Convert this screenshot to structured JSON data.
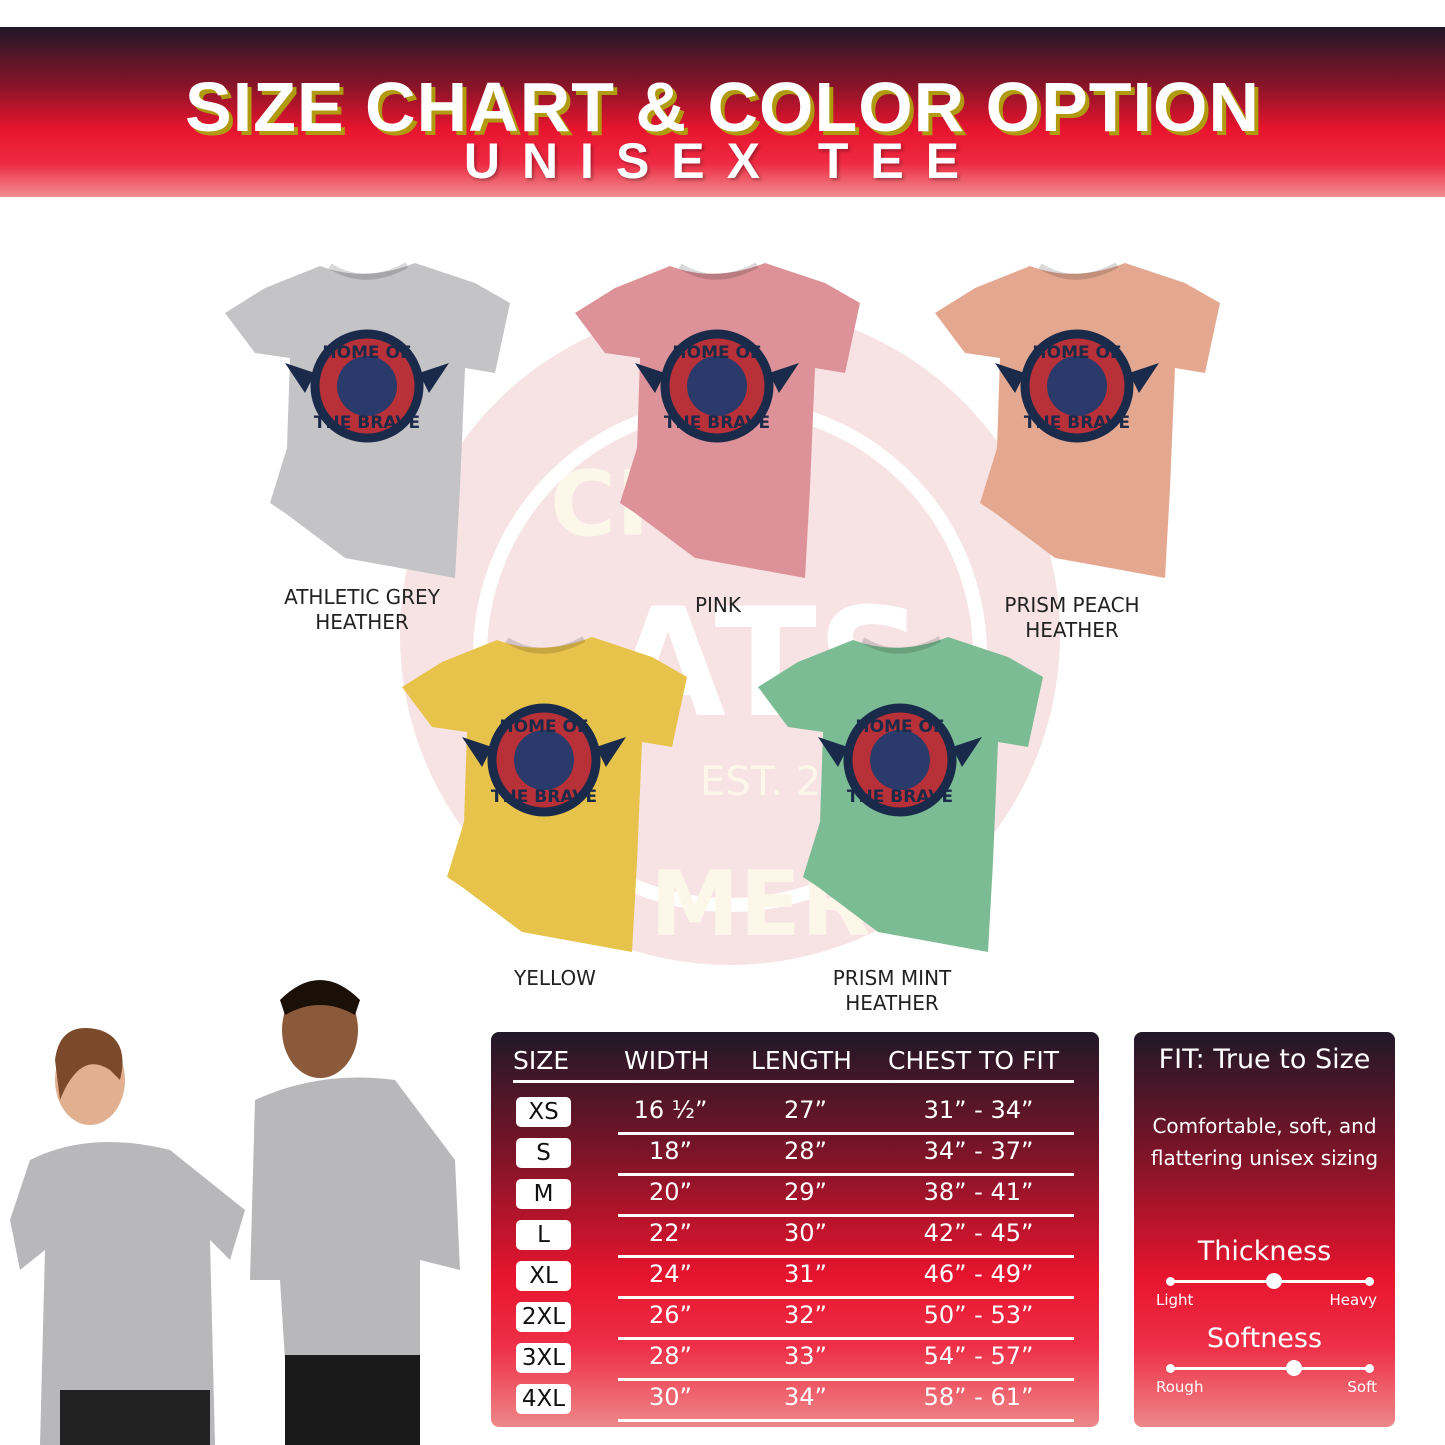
{
  "header": {
    "title": "SIZE CHART & COLOR OPTION",
    "subtitle": "UNISEX TEE"
  },
  "watermark": {
    "lines": [
      "CR",
      "ATS",
      "EST. 2022",
      "MER"
    ]
  },
  "shirt_graphic": {
    "top": "HOME OF",
    "bottom": "THE BRAVE"
  },
  "colors": [
    {
      "label": "ATHLETIC GREY\nHEATHER",
      "lines": [
        "ATHLETIC GREY",
        "HEATHER"
      ],
      "hex": "#c4c4c6"
    },
    {
      "label": "PINK",
      "lines": [
        "PINK"
      ],
      "hex": "#dc9298"
    },
    {
      "label": "PRISM PEACH HEATHER",
      "lines": [
        "PRISM PEACH",
        "HEATHER"
      ],
      "hex": "#e4a890"
    },
    {
      "label": "YELLOW",
      "lines": [
        "YELLOW"
      ],
      "hex": "#e8c34c"
    },
    {
      "label": "PRISM MINT HEATHER",
      "lines": [
        "PRISM MINT",
        "HEATHER"
      ],
      "hex": "#7cbc94"
    }
  ],
  "size_chart": {
    "headers": [
      "SIZE",
      "WIDTH",
      "LENGTH",
      "CHEST TO FIT"
    ],
    "rows": [
      {
        "size": "XS",
        "width": "16 ½”",
        "length": "27”",
        "chest": "31” - 34”"
      },
      {
        "size": "S",
        "width": "18”",
        "length": "28”",
        "chest": "34” - 37”"
      },
      {
        "size": "M",
        "width": "20”",
        "length": "29”",
        "chest": "38” - 41”"
      },
      {
        "size": "L",
        "width": "22”",
        "length": "30”",
        "chest": "42” - 45”"
      },
      {
        "size": "XL",
        "width": "24”",
        "length": "31”",
        "chest": "46” - 49”"
      },
      {
        "size": "2XL",
        "width": "26”",
        "length": "32”",
        "chest": "50” - 53”"
      },
      {
        "size": "3XL",
        "width": "28”",
        "length": "33”",
        "chest": "54” - 57”"
      },
      {
        "size": "4XL",
        "width": "30”",
        "length": "34”",
        "chest": "58” - 61”"
      }
    ]
  },
  "fit": {
    "title": "FIT: True to Size",
    "description": "Comfortable, soft, and flattering unisex sizing",
    "thickness": {
      "title": "Thickness",
      "min_label": "Light",
      "max_label": "Heavy",
      "level": 0.52
    },
    "softness": {
      "title": "Softness",
      "min_label": "Rough",
      "max_label": "Soft",
      "level": 0.62
    }
  }
}
